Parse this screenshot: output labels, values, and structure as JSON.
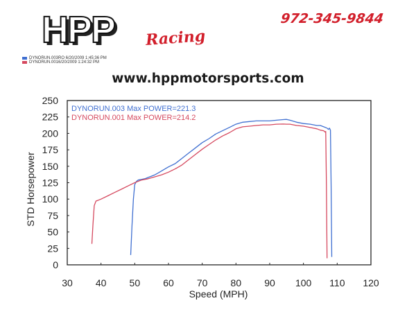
{
  "header": {
    "logo_text": "HPP",
    "logo_sub": "Racing",
    "phone": "972-345-9844",
    "website": "www.hppmotorsports.com"
  },
  "legend": [
    {
      "label": "DYNORUN.003RO  6/20/2009 1:45:36 PM",
      "color": "#3f6fd1"
    },
    {
      "label": "DYNORUN.0016/20/2009 1:24:32 PM",
      "color": "#d5485e"
    }
  ],
  "chart_data": {
    "type": "line",
    "xlabel": "Speed (MPH)",
    "ylabel": "STD Horsepower",
    "xlim": [
      30,
      120
    ],
    "ylim": [
      0,
      250
    ],
    "xticks": [
      30,
      40,
      50,
      60,
      70,
      80,
      90,
      100,
      110,
      120
    ],
    "yticks": [
      0,
      25,
      50,
      75,
      100,
      125,
      150,
      175,
      200,
      225,
      250
    ],
    "grid": false,
    "annotations": [
      {
        "text": "DYNORUN.003  Max POWER=221.3",
        "color": "#3f6fd1"
      },
      {
        "text": "DYNORUN.001  Max POWER=214.2",
        "color": "#d5485e"
      }
    ],
    "series": [
      {
        "name": "DYNORUN.003",
        "color": "#3f6fd1",
        "x": [
          48.8,
          49.2,
          49.6,
          50.0,
          50.5,
          51.0,
          52.0,
          53.0,
          54.0,
          55.0,
          56.0,
          57.0,
          58.0,
          59.0,
          60.0,
          62.0,
          64.0,
          66.0,
          68.0,
          70.0,
          72.0,
          74.0,
          76.0,
          78.0,
          80.0,
          82.0,
          84.0,
          86.0,
          88.0,
          90.0,
          92.0,
          94.0,
          95.0,
          96.0,
          98.0,
          100.0,
          102.0,
          104.0,
          105.0,
          106.0,
          107.0,
          107.4,
          107.7,
          108.0,
          108.2,
          108.4
        ],
        "y": [
          15,
          60,
          100,
          122,
          127,
          129,
          130,
          131,
          133,
          135,
          137,
          140,
          143,
          146,
          149,
          154,
          162,
          170,
          178,
          186,
          192,
          199,
          204,
          209,
          214,
          217,
          218,
          219,
          219,
          219,
          220,
          221,
          221.3,
          220,
          217,
          215,
          214,
          212,
          212,
          210,
          208,
          206,
          208,
          205,
          120,
          12
        ]
      },
      {
        "name": "DYNORUN.001",
        "color": "#d5485e",
        "x": [
          37.3,
          37.6,
          38.0,
          38.5,
          39.0,
          40.0,
          42.0,
          44.0,
          46.0,
          48.0,
          50.0,
          52.0,
          54.0,
          56.0,
          58.0,
          60.0,
          62.0,
          64.0,
          66.0,
          68.0,
          70.0,
          72.0,
          74.0,
          76.0,
          78.0,
          80.0,
          82.0,
          84.0,
          86.0,
          88.0,
          90.0,
          92.0,
          94.0,
          95.0,
          96.0,
          98.0,
          100.0,
          102.0,
          104.0,
          105.0,
          106.0,
          106.4,
          106.6,
          106.8,
          107.0
        ],
        "y": [
          32,
          60,
          90,
          97,
          98,
          100,
          105,
          110,
          115,
          120,
          125,
          129,
          131,
          134,
          137,
          141,
          146,
          152,
          160,
          168,
          176,
          183,
          190,
          196,
          201,
          207,
          210,
          211,
          212,
          213,
          213,
          214,
          214.2,
          214,
          214,
          212,
          211,
          209,
          207,
          205,
          204,
          202,
          203,
          120,
          10
        ]
      }
    ]
  }
}
